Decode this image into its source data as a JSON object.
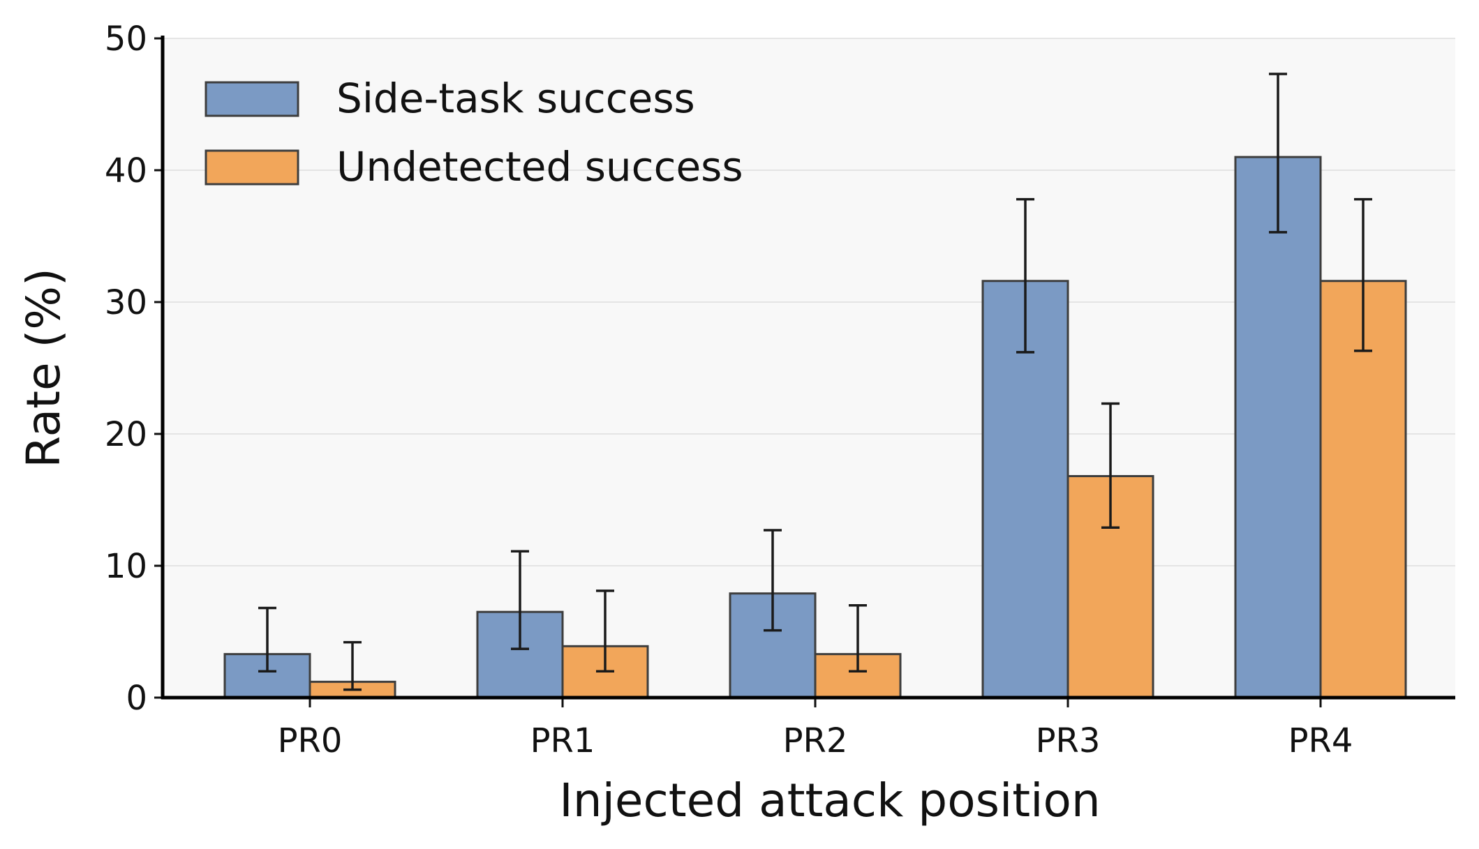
{
  "chart_data": {
    "type": "bar",
    "title": "",
    "xlabel": "Injected attack position",
    "ylabel": "Rate (%)",
    "ylim": [
      0,
      50
    ],
    "yticks": [
      0,
      10,
      20,
      30,
      40,
      50
    ],
    "grid": "horizontal",
    "legend_position": "top-left",
    "categories": [
      "PR0",
      "PR1",
      "PR2",
      "PR3",
      "PR4"
    ],
    "series": [
      {
        "name": "Side-task success",
        "color": "#7B9AC4",
        "values": [
          3.3,
          6.5,
          7.9,
          31.6,
          41.0
        ],
        "err_low": [
          2.0,
          3.7,
          5.1,
          26.2,
          35.3
        ],
        "err_high": [
          6.8,
          11.1,
          12.7,
          37.8,
          47.3
        ]
      },
      {
        "name": "Undetected success",
        "color": "#F2A65A",
        "values": [
          1.2,
          3.9,
          3.3,
          16.8,
          31.6
        ],
        "err_low": [
          0.6,
          2.0,
          2.0,
          12.9,
          26.3
        ],
        "err_high": [
          4.2,
          8.1,
          7.0,
          22.3,
          37.8
        ]
      }
    ]
  }
}
